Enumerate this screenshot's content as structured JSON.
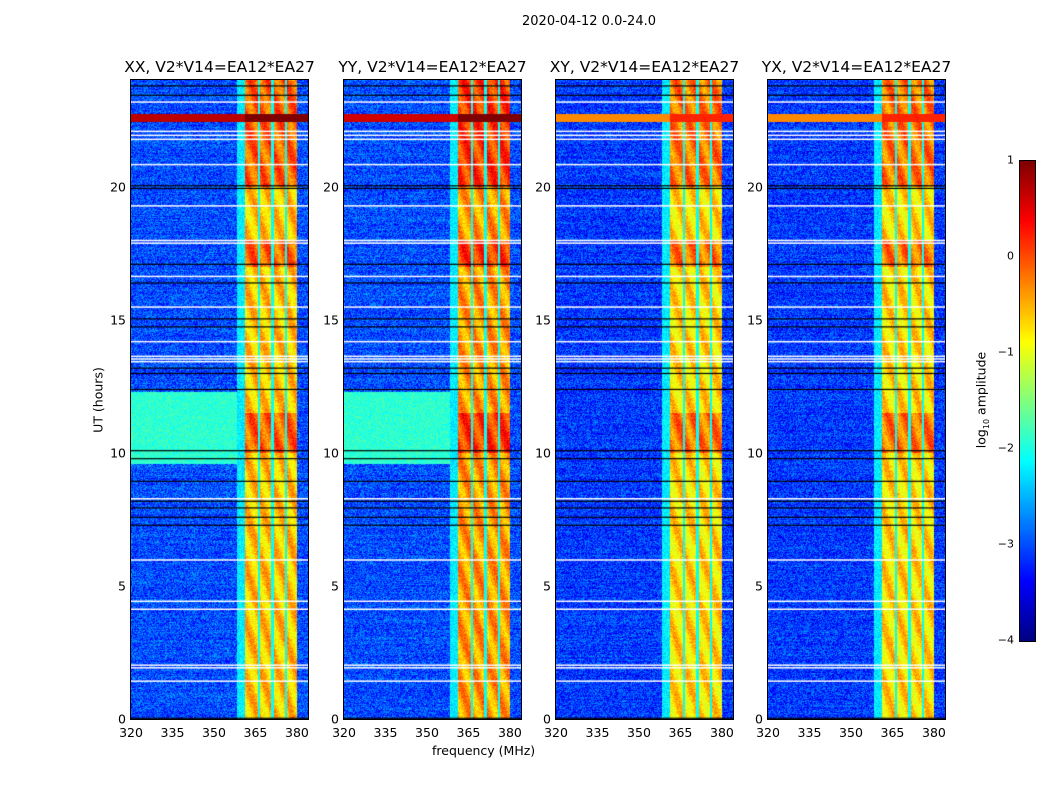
{
  "suptitle": "2020-04-12 0.0-24.0",
  "chart_data": {
    "type": "heatmap",
    "title": "2020-04-12 0.0-24.0",
    "xlabel": "frequency (MHz)",
    "ylabel": "UT (hours)",
    "xlim": [
      320,
      384
    ],
    "ylim": [
      0,
      24
    ],
    "xticks": [
      "320",
      "335",
      "350",
      "365",
      "380"
    ],
    "yticks": [
      "0",
      "5",
      "10",
      "15",
      "20"
    ],
    "panels": [
      {
        "title": "XX, V2*V14=EA12*EA27",
        "background_log_amp": -3.0,
        "rfi_band_mhz": [
          361,
          380
        ],
        "rfi_log_amp": -0.6,
        "strong_line_ut": 22.6,
        "strong_line_log_amp": 0.7,
        "low_freq_elevated_ut": [
          9.6,
          12.3
        ]
      },
      {
        "title": "YY, V2*V14=EA12*EA27",
        "background_log_amp": -3.0,
        "rfi_band_mhz": [
          361,
          380
        ],
        "rfi_log_amp": -0.4,
        "strong_line_ut": 22.6,
        "strong_line_log_amp": 0.6,
        "low_freq_elevated_ut": [
          9.6,
          12.3
        ]
      },
      {
        "title": "XY, V2*V14=EA12*EA27",
        "background_log_amp": -3.1,
        "rfi_band_mhz": [
          361,
          380
        ],
        "rfi_log_amp": -0.7,
        "strong_line_ut": 22.6,
        "strong_line_log_amp": -0.3,
        "low_freq_elevated_ut": null
      },
      {
        "title": "YX, V2*V14=EA12*EA27",
        "background_log_amp": -3.1,
        "rfi_band_mhz": [
          361,
          380
        ],
        "rfi_log_amp": -0.7,
        "strong_line_ut": 22.6,
        "strong_line_log_amp": -0.3,
        "low_freq_elevated_ut": null
      }
    ],
    "flagged_ut_white": [
      1.45,
      1.95,
      2.05,
      4.15,
      4.45,
      6.0,
      8.3,
      13.45,
      13.55,
      13.65,
      14.2,
      15.5,
      16.65,
      17.9,
      18.0,
      19.3,
      20.85,
      21.8,
      21.95,
      22.1,
      23.2
    ],
    "flagged_ut_black": [
      0.05,
      7.3,
      7.6,
      7.95,
      8.2,
      8.95,
      9.8,
      10.1,
      12.4,
      13.0,
      13.2,
      14.75,
      15.05,
      16.4,
      17.1,
      19.95,
      20.05,
      23.45,
      23.8
    ],
    "colorbar": {
      "label": "log10 amplitude",
      "label_main": "log",
      "label_sub": "10",
      "label_rest": " amplitude",
      "range": [
        -4,
        1
      ],
      "ticks": [
        "−4",
        "−3",
        "−2",
        "−1",
        "0",
        "1"
      ],
      "colormap": "jet"
    }
  }
}
